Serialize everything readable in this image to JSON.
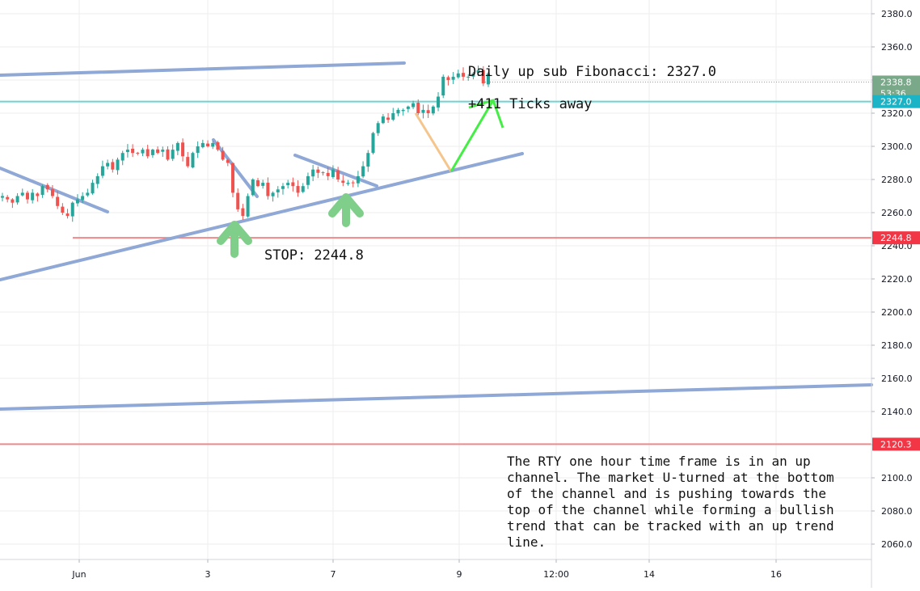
{
  "chart_data": {
    "type": "candlestick",
    "symbol": "RTY",
    "timeframe": "1 hour",
    "price_axis": {
      "ylim": [
        2050,
        2390
      ],
      "ticks": [
        "2380.0",
        "2360.0",
        "2340.0",
        "2320.0",
        "2300.0",
        "2280.0",
        "2260.0",
        "2240.0",
        "2220.0",
        "2200.0",
        "2180.0",
        "2160.0",
        "2140.0",
        "2120.0",
        "2100.0",
        "2080.0",
        "2060.0"
      ]
    },
    "time_axis": {
      "ticks": [
        "Jun",
        "3",
        "7",
        "9",
        "12:00",
        "14",
        "16"
      ]
    },
    "price_tags": [
      {
        "label": "2338.8",
        "sub": "53:36",
        "color": "#79a989",
        "value": 2338.8
      },
      {
        "label": "2327.0",
        "color": "#1bb3c6",
        "value": 2327.0
      },
      {
        "label": "2244.8",
        "color": "#f23645",
        "value": 2244.8
      },
      {
        "label": "2120.3",
        "color": "#f23645",
        "value": 2120.3
      }
    ],
    "levels": [
      {
        "name": "daily-fib",
        "value": 2327.0,
        "color": "#6fd3d3"
      },
      {
        "name": "stop",
        "value": 2244.8,
        "color": "#ee8a8a"
      },
      {
        "name": "lower",
        "value": 2120.3,
        "color": "#ee8a8a"
      }
    ],
    "candle_series": [
      2270,
      2268,
      2266,
      2270,
      2272,
      2268,
      2272,
      2270,
      2276,
      2274,
      2270,
      2264,
      2260,
      2258,
      2266,
      2268,
      2270,
      2272,
      2278,
      2282,
      2288,
      2290,
      2286,
      2292,
      2296,
      2298,
      2296,
      2296,
      2298,
      2294,
      2298,
      2296,
      2298,
      2292,
      2298,
      2302,
      2294,
      2288,
      2296,
      2300,
      2302,
      2300,
      2302,
      2298,
      2292,
      2290,
      2272,
      2262,
      2258,
      2270,
      2280,
      2276,
      2278,
      2270,
      2272,
      2274,
      2276,
      2278,
      2276,
      2272,
      2276,
      2282,
      2286,
      2284,
      2284,
      2282,
      2286,
      2280,
      2278,
      2278,
      2278,
      2282,
      2288,
      2296,
      2308,
      2314,
      2318,
      2316,
      2320,
      2322,
      2322,
      2324,
      2326,
      2320,
      2322,
      2320,
      2324,
      2330,
      2342,
      2340,
      2342,
      2344,
      2342,
      2342,
      2344,
      2346,
      2338,
      2344
    ],
    "annotations": {
      "fib_label": "Daily up sub Fibonacci: 2327.0",
      "ticks_away": "+411 Ticks away",
      "stop_label": "STOP: 2244.8"
    },
    "description": [
      "The RTY one hour time frame is in an up",
      "channel. The market U-turned at the bottom",
      "of the channel and is pushing towards the",
      "top of the channel while forming a bullish",
      "trend that can be tracked with an up trend",
      "line."
    ],
    "colors": {
      "channel": "#8fa8d6",
      "up_candle": "#26a69a",
      "down_candle": "#ef5350",
      "arrow_green_light": "#7fce8a",
      "projection_orange": "#f5c58c",
      "projection_green": "#44ee44",
      "grid": "#eeeeee"
    }
  }
}
